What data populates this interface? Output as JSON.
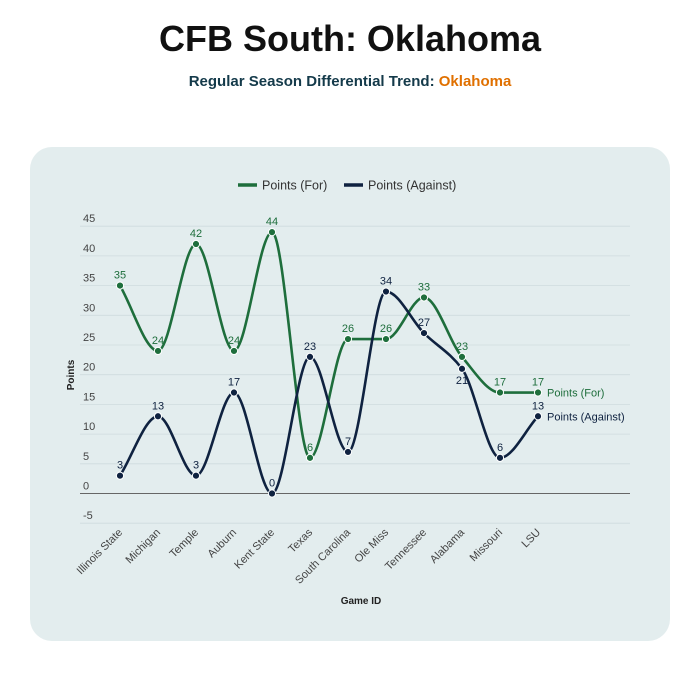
{
  "header": {
    "title": "CFB South: Oklahoma",
    "subtitle_prefix": "Regular Season Differential Trend: ",
    "subtitle_team": "Oklahoma"
  },
  "colors": {
    "for": "#1e6e3c",
    "against": "#0f2240",
    "accent": "#e07000",
    "card": "#e3edee"
  },
  "chart_data": {
    "type": "line",
    "xlabel": "Game ID",
    "ylabel": "Points",
    "ylim": [
      -5,
      45
    ],
    "yticks": [
      -5,
      0,
      5,
      10,
      15,
      20,
      25,
      30,
      35,
      40,
      45
    ],
    "grid": true,
    "legend": "top-center",
    "categories": [
      "Illinois State",
      "Michigan",
      "Temple",
      "Auburn",
      "Kent State",
      "Texas",
      "South Carolina",
      "Ole Miss",
      "Tennessee",
      "Alabama",
      "Missouri",
      "LSU"
    ],
    "series": [
      {
        "name": "Points (For)",
        "color": "#1e6e3c",
        "values": [
          35,
          24,
          42,
          24,
          44,
          6,
          26,
          26,
          33,
          23,
          17,
          17
        ]
      },
      {
        "name": "Points (Against)",
        "color": "#0f2240",
        "values": [
          3,
          13,
          3,
          17,
          0,
          23,
          7,
          34,
          27,
          21,
          6,
          13
        ]
      }
    ]
  }
}
